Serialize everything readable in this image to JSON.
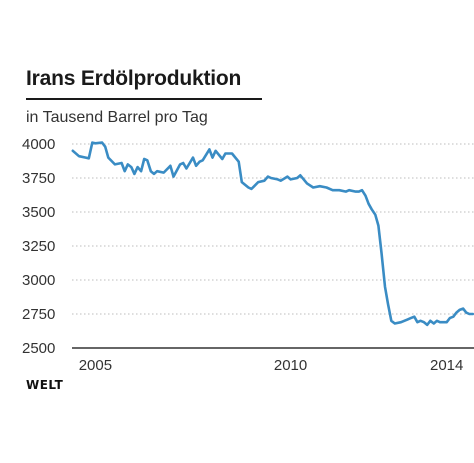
{
  "chart_title": "Irans Erdölproduktion",
  "chart_subtitle": "in Tausend Barrel pro Tag",
  "brand": "WELT",
  "colors": {
    "line": "#3a8cc4",
    "grid": "#bdbdbd",
    "baseline": "#333333",
    "text": "#333333"
  },
  "chart_data": {
    "type": "line",
    "title": "Irans Erdölproduktion",
    "subtitle": "in Tausend Barrel pro Tag",
    "xlabel": "",
    "ylabel": "",
    "xlim": [
      2004.4,
      2014.7
    ],
    "ylim": [
      2500,
      4000
    ],
    "yticks": [
      2500,
      2750,
      3000,
      3250,
      3500,
      3750,
      4000
    ],
    "yticklabels": [
      "2500",
      "2750",
      "3000",
      "3250",
      "3500",
      "3750",
      "4000"
    ],
    "xticks": [
      2005,
      2010,
      2014
    ],
    "xticklabels": [
      "2005",
      "2010",
      "2014"
    ],
    "grid": true,
    "legend": "none",
    "series": [
      {
        "x": [
          2004.42,
          2004.58,
          2004.75,
          2004.83,
          2004.92,
          2005.0,
          2005.17,
          2005.25,
          2005.33,
          2005.5,
          2005.67,
          2005.75,
          2005.83,
          2005.92,
          2006.0,
          2006.08,
          2006.17,
          2006.25,
          2006.33,
          2006.42,
          2006.5,
          2006.58,
          2006.75,
          2006.92,
          2007.0,
          2007.17,
          2007.25,
          2007.33,
          2007.5,
          2007.58,
          2007.67,
          2007.75,
          2007.92,
          2008.0,
          2008.08,
          2008.25,
          2008.33,
          2008.5,
          2008.67,
          2008.75,
          2008.92,
          2009.0,
          2009.17,
          2009.33,
          2009.42,
          2009.5,
          2009.67,
          2009.75,
          2009.92,
          2010.0,
          2010.17,
          2010.25,
          2010.42,
          2010.58,
          2010.75,
          2010.92,
          2011.08,
          2011.25,
          2011.42,
          2011.5,
          2011.67,
          2011.75,
          2011.83,
          2011.92,
          2012.0,
          2012.08,
          2012.17,
          2012.25,
          2012.33,
          2012.42,
          2012.5,
          2012.58,
          2012.67,
          2012.83,
          2013.0,
          2013.08,
          2013.17,
          2013.25,
          2013.33,
          2013.42,
          2013.5,
          2013.58,
          2013.67,
          2013.75,
          2013.83,
          2013.92,
          2014.0,
          2014.08,
          2014.17,
          2014.25,
          2014.33,
          2014.42,
          2014.5,
          2014.58,
          2014.67
        ],
        "y": [
          3950,
          3910,
          3900,
          3895,
          4010,
          4005,
          4010,
          3980,
          3900,
          3850,
          3860,
          3800,
          3850,
          3830,
          3780,
          3830,
          3800,
          3890,
          3880,
          3800,
          3780,
          3800,
          3790,
          3840,
          3760,
          3850,
          3860,
          3820,
          3900,
          3840,
          3870,
          3880,
          3960,
          3900,
          3950,
          3890,
          3930,
          3930,
          3870,
          3720,
          3680,
          3670,
          3720,
          3730,
          3760,
          3750,
          3740,
          3730,
          3760,
          3740,
          3750,
          3770,
          3710,
          3680,
          3690,
          3680,
          3660,
          3660,
          3650,
          3660,
          3650,
          3650,
          3660,
          3620,
          3560,
          3520,
          3480,
          3400,
          3200,
          2950,
          2820,
          2700,
          2680,
          2690,
          2710,
          2720,
          2730,
          2690,
          2700,
          2690,
          2670,
          2700,
          2680,
          2700,
          2690,
          2690,
          2690,
          2720,
          2730,
          2760,
          2780,
          2790,
          2760,
          2750,
          2750
        ]
      }
    ]
  }
}
